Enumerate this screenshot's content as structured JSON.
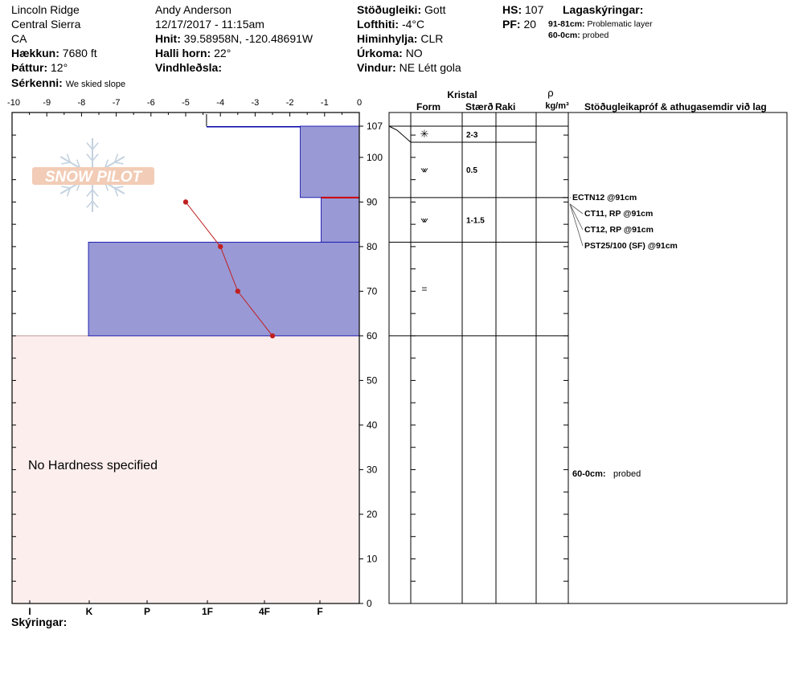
{
  "header": {
    "location": "Lincoln Ridge",
    "range": "Central Sierra",
    "state": "CA",
    "elevation_label": "Hækkun:",
    "elevation": "7680 ft",
    "aspect_label": "Þáttur:",
    "aspect": "12°",
    "features_label": "Sérkenni:",
    "features": "We skied slope",
    "observer": "Andy Anderson",
    "datetime": "12/17/2017 - 11:15am",
    "coords_label": "Hnit:",
    "coords": "39.58958N, -120.48691W",
    "slope_label": "Halli horn:",
    "slope": "22°",
    "wind_loading_label": "Vindhleðsla:",
    "wind_loading": "",
    "stability_label": "Stöðugleiki:",
    "stability": "Gott",
    "air_temp_label": "Lofthiti:",
    "air_temp": "-4°C",
    "sky_label": "Himinhylja:",
    "sky": "CLR",
    "precip_label": "Úrkoma:",
    "precip": "NO",
    "wind_label": "Vindur:",
    "wind": "NE Létt gola",
    "hs_label": "HS:",
    "hs": "107",
    "pf_label": "PF:",
    "pf": "20",
    "layer_notes_title": "Lagaskýringar:",
    "layer_notes": [
      {
        "range": "91-81cm:",
        "text": "Problematic layer"
      },
      {
        "range": "60-0cm:",
        "text": "probed"
      }
    ]
  },
  "legend_label": "Skýringar:",
  "no_hardness_text": "No Hardness specified",
  "logo_text": "SNOW PILOT",
  "colors": {
    "hardness_fill": "#9999d6",
    "hardness_edge": "#0000aa",
    "probe_fill": "#fdeeee",
    "temp_line": "#c02020",
    "problem_line": "#cc0000"
  },
  "table_headers": {
    "crystal": "Kristal",
    "form": "Form",
    "size": "Stærð",
    "moisture": "Raki",
    "density_symbol": "ρ",
    "density_unit": "kg/m³",
    "tests": "Stöðugleikapróf & athugasemdir við lag"
  },
  "chart_data": {
    "type": "line",
    "title": "",
    "temperature_axis": {
      "ticks": [
        -10,
        -9,
        -8,
        -7,
        -6,
        -5,
        -4,
        -3,
        -2,
        -1,
        0
      ],
      "range": [
        -10,
        0
      ]
    },
    "height_axis": {
      "ticks": [
        107,
        100,
        90,
        80,
        70,
        60,
        50,
        40,
        30,
        20,
        10,
        0
      ],
      "range": [
        0,
        107
      ]
    },
    "hardness_axis": {
      "labels": [
        "I",
        "K",
        "P",
        "1F",
        "4F",
        "F"
      ]
    },
    "temperature_profile": [
      {
        "height": 90,
        "temp": -5.0
      },
      {
        "height": 80,
        "temp": -4.0
      },
      {
        "height": 70,
        "temp": -3.5
      },
      {
        "height": 60,
        "temp": -2.5
      }
    ],
    "hardness_layers": [
      {
        "top": 107,
        "bottom": 91,
        "hardness_scale": 1.7
      },
      {
        "top": 91,
        "bottom": 81,
        "hardness_scale": 1.1
      },
      {
        "top": 81,
        "bottom": 60,
        "hardness_scale": 7.8
      }
    ],
    "surface_extent": {
      "height": 107,
      "temp_from": -4.4,
      "temp_to": 0
    },
    "probed_range": {
      "top": 60,
      "bottom": 0
    },
    "problem_layer_height": 91,
    "layer_boundaries": [
      107,
      104,
      91,
      81,
      60
    ],
    "layers": [
      {
        "top": 104,
        "bottom": 91,
        "form": "⩖",
        "size": "0.5"
      },
      {
        "top": 91,
        "bottom": 81,
        "form": "⩖",
        "size": "1-1.5"
      },
      {
        "top": 81,
        "bottom": 60,
        "form": "=",
        "size": ""
      }
    ],
    "surface_layer": {
      "form": "✳",
      "size": "2-3"
    },
    "tests": [
      {
        "label": "ECTN12 @91cm"
      },
      {
        "label": "CT11, RP @91cm"
      },
      {
        "label": "CT12, RP @91cm"
      },
      {
        "label": "PST25/100 (SF) @91cm"
      }
    ],
    "probe_comment": {
      "label": "60-0cm:",
      "text": "probed"
    }
  }
}
